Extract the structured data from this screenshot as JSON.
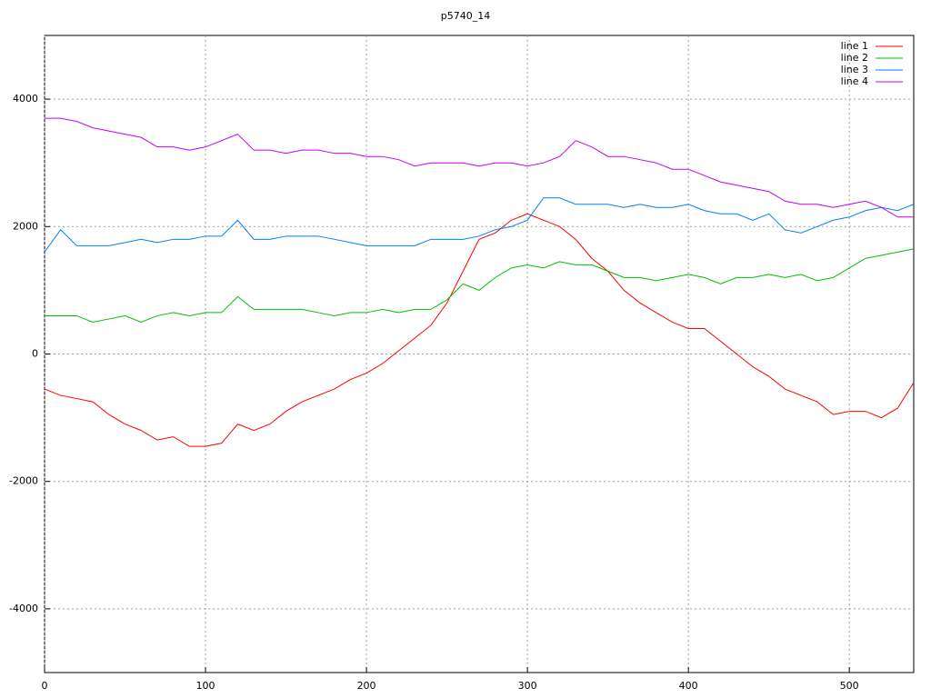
{
  "chart_data": {
    "type": "line",
    "title": "p5740_14",
    "x": [
      0,
      10,
      20,
      30,
      40,
      50,
      60,
      70,
      80,
      90,
      100,
      110,
      120,
      130,
      140,
      150,
      160,
      170,
      180,
      190,
      200,
      210,
      220,
      230,
      240,
      250,
      260,
      270,
      280,
      290,
      300,
      310,
      320,
      330,
      340,
      350,
      360,
      370,
      380,
      390,
      400,
      410,
      420,
      430,
      440,
      450,
      460,
      470,
      480,
      490,
      500,
      510,
      520,
      530,
      540
    ],
    "series": [
      {
        "name": "line 1",
        "color": "#ff0000",
        "values": [
          -550,
          -650,
          -700,
          -750,
          -950,
          -1100,
          -1200,
          -1350,
          -1300,
          -1450,
          -1450,
          -1400,
          -1100,
          -1200,
          -1100,
          -900,
          -750,
          -650,
          -550,
          -400,
          -300,
          -150,
          50,
          250,
          450,
          800,
          1300,
          1800,
          1900,
          2100,
          2200,
          2100,
          2000,
          1800,
          1500,
          1300,
          1000,
          800,
          650,
          500,
          400,
          400,
          200,
          0,
          -200,
          -350,
          -550,
          -650,
          -750,
          -950,
          -900,
          -900,
          -1000,
          -850,
          -450
        ]
      },
      {
        "name": "line 2",
        "color": "#00c000",
        "values": [
          600,
          600,
          600,
          500,
          550,
          600,
          500,
          600,
          650,
          600,
          650,
          650,
          900,
          700,
          700,
          700,
          700,
          650,
          600,
          650,
          650,
          700,
          650,
          700,
          700,
          850,
          1100,
          1000,
          1200,
          1350,
          1400,
          1350,
          1450,
          1400,
          1400,
          1300,
          1200,
          1200,
          1150,
          1200,
          1250,
          1200,
          1100,
          1200,
          1200,
          1250,
          1200,
          1250,
          1150,
          1200,
          1350,
          1500,
          1550,
          1600,
          1650
        ]
      },
      {
        "name": "line 3",
        "color": "#0080ff",
        "values": [
          1600,
          1950,
          1700,
          1700,
          1700,
          1750,
          1800,
          1750,
          1800,
          1800,
          1850,
          1850,
          2100,
          1800,
          1800,
          1850,
          1850,
          1850,
          1800,
          1750,
          1700,
          1700,
          1700,
          1700,
          1800,
          1800,
          1800,
          1850,
          1950,
          2000,
          2100,
          2450,
          2450,
          2350,
          2350,
          2350,
          2300,
          2350,
          2300,
          2300,
          2350,
          2250,
          2200,
          2200,
          2100,
          2200,
          1950,
          1900,
          2000,
          2100,
          2150,
          2250,
          2300,
          2250,
          2350
        ]
      },
      {
        "name": "line 4",
        "color": "#c000ff",
        "values": [
          3700,
          3700,
          3650,
          3550,
          3500,
          3450,
          3400,
          3250,
          3250,
          3200,
          3250,
          3350,
          3450,
          3200,
          3200,
          3150,
          3200,
          3200,
          3150,
          3150,
          3100,
          3100,
          3050,
          2950,
          3000,
          3000,
          3000,
          2950,
          3000,
          3000,
          2950,
          3000,
          3100,
          3350,
          3250,
          3100,
          3100,
          3050,
          3000,
          2900,
          2900,
          2800,
          2700,
          2650,
          2600,
          2550,
          2400,
          2350,
          2350,
          2300,
          2350,
          2400,
          2300,
          2150,
          2150
        ]
      }
    ],
    "xlim": [
      0,
      540
    ],
    "xticks": [
      0,
      100,
      200,
      300,
      400,
      500
    ],
    "ylim": [
      -5000,
      5000
    ],
    "yticks": [
      -4000,
      -2000,
      0,
      2000,
      4000
    ],
    "grid": true,
    "legend": "top-right"
  }
}
